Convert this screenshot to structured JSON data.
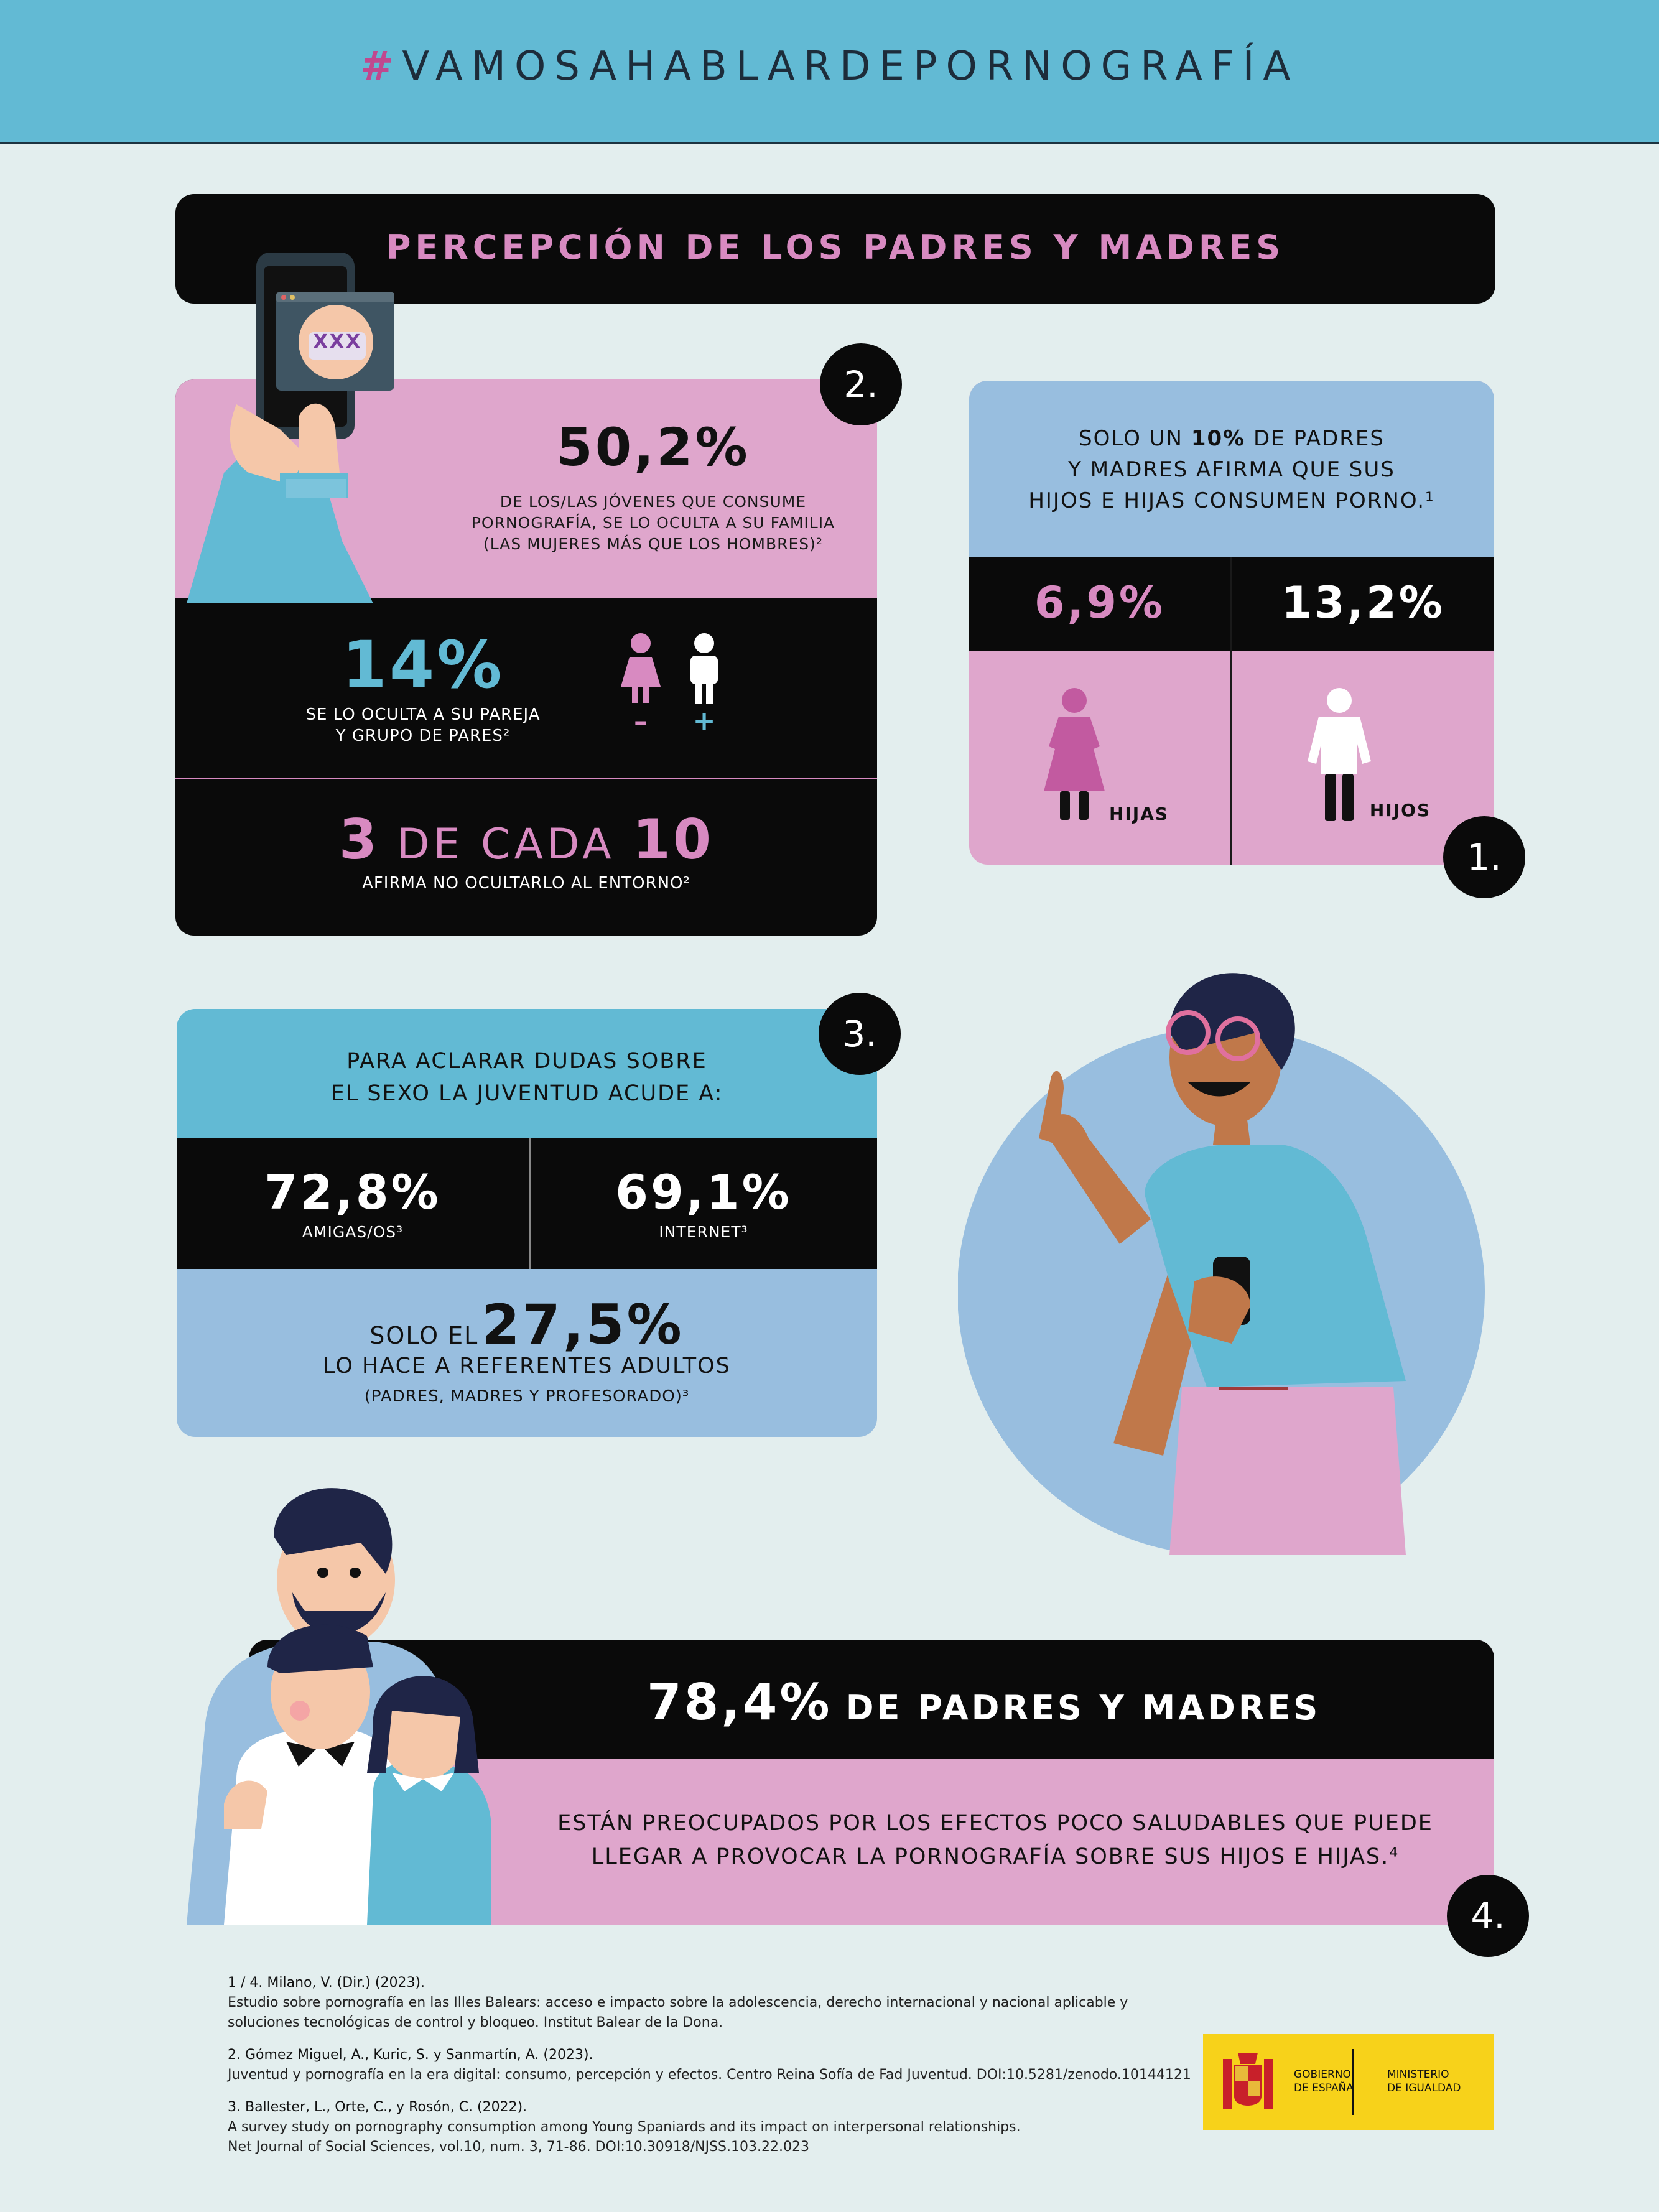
{
  "header": {
    "hash": "#",
    "hashtag": "VAMOSAHABLARDEPORNOGRAFÍA"
  },
  "title_bar": {
    "title": "PERCEPCIÓN DE LOS PADRES Y MADRES"
  },
  "section2": {
    "badge": "2.",
    "phone_label": "XXX",
    "main_pct": "50,2%",
    "main_desc": [
      "DE LOS/LAS JÓVENES QUE CONSUME",
      "PORNOGRAFÍA, SE LO OCULTA A SU FAMILIA",
      "(LAS MUJERES MÁS QUE LOS HOMBRES)²"
    ],
    "pct_14": "14%",
    "desc_14": [
      "SE LO OCULTA A SU PAREJA",
      "Y GRUPO DE PARES²"
    ],
    "minus": "–",
    "plus": "+",
    "three_of_ten": {
      "n1": "3",
      "mid": "DE CADA",
      "n2": "10"
    },
    "desc_3of10": "AFIRMA NO OCULTARLO AL ENTORNO²"
  },
  "section1": {
    "badge": "1.",
    "intro_pre": "SOLO UN",
    "intro_pct": "10%",
    "intro_line1_post": "DE PADRES",
    "intro_line2": "Y MADRES AFIRMA QUE SUS",
    "intro_line3": "HIJOS E HIJAS CONSUMEN PORNO.¹",
    "girls_pct": "6,9%",
    "boys_pct": "13,2%",
    "girls_label": "HIJAS",
    "boys_label": "HIJOS"
  },
  "section3": {
    "badge": "3.",
    "intro": [
      "PARA ACLARAR DUDAS SOBRE",
      "EL SEXO LA JUVENTUD ACUDE A:"
    ],
    "friends_pct": "72,8%",
    "friends_label": "AMIGAS/OS³",
    "internet_pct": "69,1%",
    "internet_label": "INTERNET³",
    "only_pre": "SOLO EL",
    "only_pct": "27,5%",
    "only_line2": "LO HACE A REFERENTES ADULTOS",
    "only_line3": "(PADRES, MADRES Y PROFESORADO)³"
  },
  "section4": {
    "badge": "4.",
    "pct": "78,4%",
    "title": "DE PADRES Y MADRES",
    "desc": [
      "ESTÁN PREOCUPADOS POR LOS EFECTOS POCO SALUDABLES QUE PUEDE",
      "LLEGAR A PROVOCAR LA PORNOGRAFÍA SOBRE SUS HIJOS E HIJAS.⁴"
    ]
  },
  "references": [
    {
      "head": "1 / 4. Milano, V. (Dir.) (2023).",
      "lines": [
        "Estudio sobre pornografía en las Illes Balears: acceso e impacto sobre la adolescencia, derecho internacional y nacional aplicable y",
        "soluciones tecnológicas de control y bloqueo. Institut Balear de la Dona."
      ]
    },
    {
      "head": "2. Gómez Miguel, A., Kuric, S. y Sanmartín, A. (2023).",
      "lines": [
        "Juventud y pornografía en la era digital: consumo, percepción y efectos. Centro Reina Sofía de Fad Juventud. DOI:10.5281/zenodo.10144121"
      ]
    },
    {
      "head": "3. Ballester, L., Orte, C., y Rosón, C. (2022).",
      "lines": [
        "A survey study on pornography consumption among Young Spaniards and its impact on interpersonal relationships.",
        "Net Journal of Social Sciences, vol.10, num. 3, 71-86. DOI:10.30918/NJSS.103.22.023"
      ]
    }
  ],
  "logo": {
    "left": [
      "GOBIERNO",
      "DE ESPAÑA"
    ],
    "right": [
      "MINISTERIO",
      "DE IGUALDAD"
    ]
  },
  "colors": {
    "cyan": "#62bad4",
    "pink": "#dfa6cc",
    "blue": "#98bedf",
    "black": "#0a0a0a",
    "bg": "#e3eeee",
    "magenta": "#c0488e",
    "yellow": "#f7d21a"
  }
}
